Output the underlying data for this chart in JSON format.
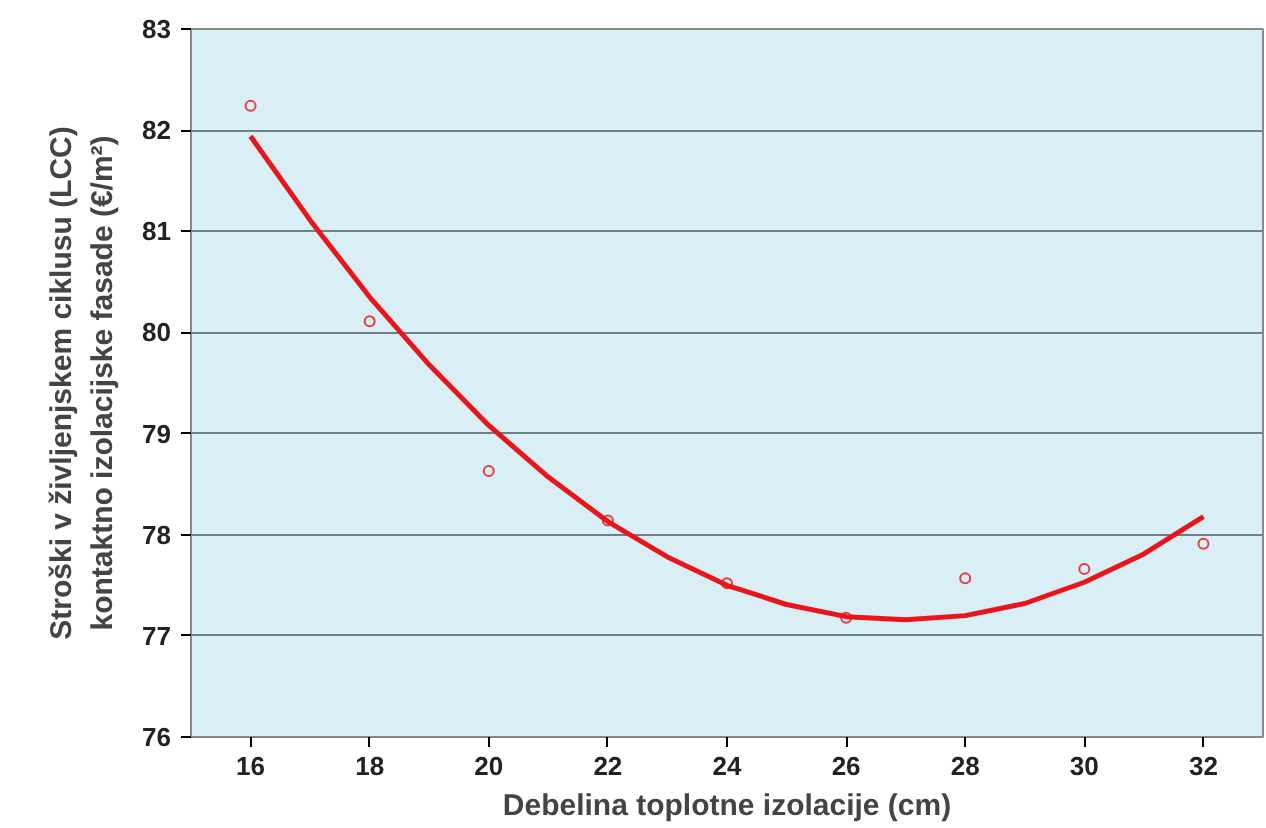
{
  "chart_data": {
    "type": "scatter",
    "xlabel": "Debelina toplotne izolacije (cm)",
    "ylabel": "Stroški v življenjskem ciklusu (LCC)\nkontaktno izolacijske fasade (€/m²)",
    "x": [
      16,
      18,
      20,
      22,
      24,
      26,
      28,
      30,
      32
    ],
    "series": [
      {
        "color": "#e04040",
        "marker": "circle",
        "values": [
          82.24,
          80.11,
          78.63,
          78.14,
          77.52,
          77.18,
          77.57,
          77.66,
          77.91
        ]
      },
      {
        "type": "line",
        "color": "#e8161b",
        "line_style": "solid",
        "x": [
          16,
          17,
          18,
          19,
          20,
          21,
          22,
          23,
          24,
          25,
          26,
          27,
          28,
          29,
          30,
          31,
          32
        ],
        "values": [
          81.94,
          81.11,
          80.35,
          79.68,
          79.08,
          78.57,
          78.13,
          77.78,
          77.5,
          77.31,
          77.19,
          77.16,
          77.2,
          77.32,
          77.53,
          77.81,
          78.18
        ]
      }
    ],
    "xlim": [
      15,
      33
    ],
    "xticks": [
      16,
      18,
      20,
      22,
      24,
      26,
      28,
      30,
      32
    ],
    "ylim": [
      76,
      83
    ],
    "yticks": [
      76,
      77,
      78,
      79,
      80,
      81,
      82,
      83
    ],
    "grid": "y"
  }
}
